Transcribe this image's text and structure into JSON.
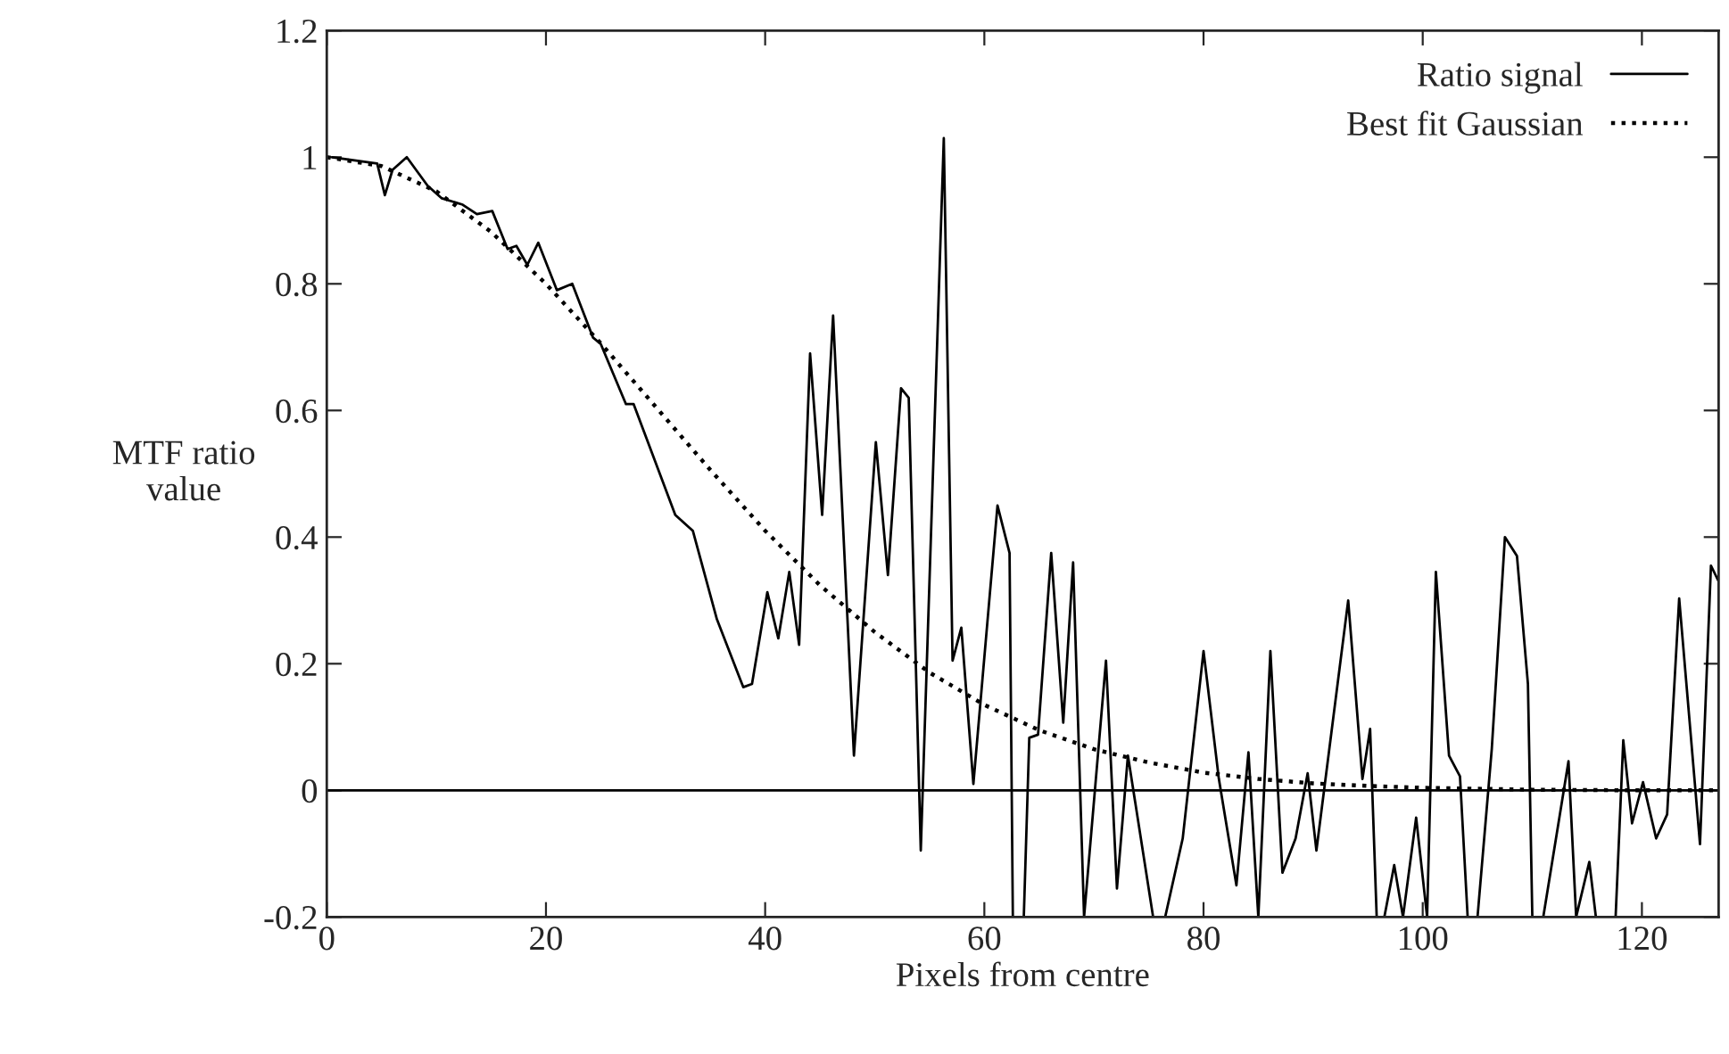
{
  "chart_data": {
    "type": "line",
    "xlabel": "Pixels from centre",
    "ylabel": "MTF ratio\nvalue",
    "xlim": [
      0,
      127
    ],
    "xticks": [
      0,
      20,
      40,
      60,
      80,
      100,
      120
    ],
    "ylim": [
      -0.2,
      1.2
    ],
    "yticks": [
      -0.2,
      0,
      0.2,
      0.4,
      0.6,
      0.8,
      1,
      1.2
    ],
    "grid": false,
    "legend": "top right",
    "ref_lines": [
      {
        "axis": "y",
        "value": 0,
        "color": "#000000"
      }
    ],
    "series": [
      {
        "name": "Ratio signal",
        "color": "#000000",
        "line_style": "solid",
        "x": [
          0.5,
          4.6,
          5.3,
          6,
          7.3,
          9.2,
          10.5,
          12.4,
          13.7,
          15.1,
          16.5,
          17.3,
          18.3,
          19.3,
          21,
          22.4,
          24.3,
          25,
          27.3,
          28,
          31.8,
          33.4,
          35.6,
          38,
          38.8,
          40.2,
          41.2,
          42.2,
          43.1,
          44.1,
          45.2,
          46.2,
          48.1,
          50.1,
          51.2,
          52.4,
          53.1,
          54.2,
          56.3,
          57.1,
          57.9,
          59,
          61.2,
          62.3,
          62.6,
          63.6,
          64.1,
          64.9,
          66.1,
          67.2,
          68.1,
          69.1,
          71.1,
          72.1,
          73.1,
          75.4,
          76.5,
          78.1,
          80,
          81.4,
          83,
          84.1,
          85,
          86.1,
          87.2,
          88.4,
          89.5,
          90.3,
          93.2,
          94.5,
          95.2,
          95.8,
          96.5,
          97.4,
          98.2,
          99.4,
          100.4,
          101.2,
          102.4,
          103.4,
          104.1,
          105,
          106.3,
          107.5,
          108.6,
          109.6,
          110,
          111,
          113.3,
          114,
          115.2,
          115.8,
          117.6,
          118.3,
          119.1,
          120.1,
          121.3,
          122.3,
          123.4,
          125.3,
          126.3,
          127
        ],
        "values": [
          1.0,
          0.99,
          0.94,
          0.98,
          1.0,
          0.955,
          0.935,
          0.925,
          0.91,
          0.915,
          0.855,
          0.86,
          0.83,
          0.865,
          0.79,
          0.8,
          0.715,
          0.705,
          0.61,
          0.61,
          0.435,
          0.41,
          0.27,
          0.163,
          0.168,
          0.313,
          0.24,
          0.345,
          0.23,
          0.69,
          0.435,
          0.75,
          0.055,
          0.55,
          0.34,
          0.635,
          0.62,
          -0.095,
          1.03,
          0.205,
          0.257,
          0.01,
          0.45,
          0.375,
          -0.2,
          -0.2,
          0.083,
          0.088,
          0.375,
          0.107,
          0.36,
          -0.2,
          0.205,
          -0.155,
          0.055,
          -0.2,
          -0.2,
          -0.076,
          0.22,
          0.018,
          -0.15,
          0.06,
          -0.2,
          0.22,
          -0.13,
          -0.076,
          0.027,
          -0.095,
          0.3,
          0.018,
          0.097,
          -0.2,
          -0.2,
          -0.118,
          -0.2,
          -0.043,
          -0.2,
          0.345,
          0.055,
          0.022,
          -0.2,
          -0.2,
          0.065,
          0.4,
          0.37,
          0.168,
          -0.2,
          -0.2,
          0.046,
          -0.2,
          -0.113,
          -0.2,
          -0.2,
          0.079,
          -0.052,
          0.013,
          -0.076,
          -0.038,
          0.303,
          -0.085,
          0.355,
          0.33
        ]
      },
      {
        "name": "Best fit Gaussian",
        "color": "#000000",
        "line_style": "dotted",
        "x": [
          0,
          5,
          10,
          15,
          20,
          25,
          30,
          35,
          40,
          45,
          50,
          55,
          60,
          65,
          70,
          75,
          80,
          85,
          90,
          95,
          100,
          110,
          120,
          127
        ],
        "values": [
          1.0,
          0.986,
          0.946,
          0.882,
          0.8,
          0.706,
          0.606,
          0.506,
          0.41,
          0.324,
          0.25,
          0.186,
          0.135,
          0.095,
          0.065,
          0.044,
          0.028,
          0.018,
          0.011,
          0.007,
          0.004,
          0.001,
          0.0,
          0.0
        ]
      }
    ]
  }
}
